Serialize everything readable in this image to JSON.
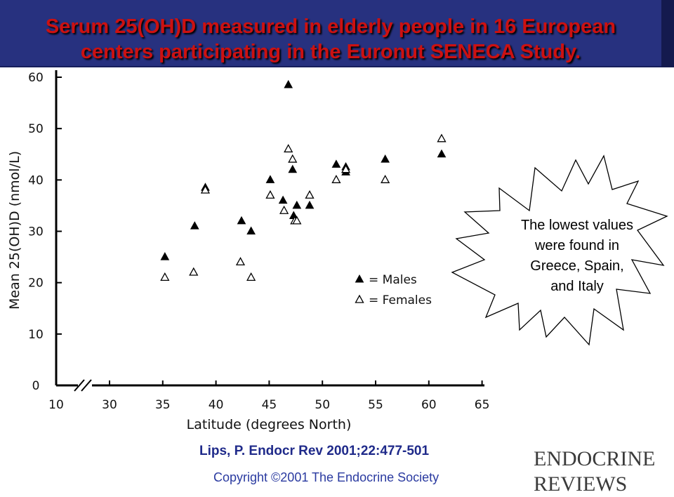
{
  "slide": {
    "title_line1": "Serum 25(OH)D measured in elderly people in 16 European",
    "title_line2": "centers participating in the Euronut SENECA Study.",
    "citation": "Lips, P. Endocr Rev 2001;22:477-501",
    "copyright": "Copyright ©2001 The Endocrine Society",
    "journal_line1": "ENDOCRINE",
    "journal_line2": "REVIEWS",
    "colors": {
      "banner": "#27317f",
      "title": "#cc1111",
      "citation": "#1f2a8a"
    }
  },
  "callout": {
    "lines": [
      "The lowest values",
      "were found in",
      "Greece, Spain,",
      "and Italy"
    ]
  },
  "chart_data": {
    "type": "scatter",
    "title": "",
    "xlabel": "Latitude (degrees North)",
    "ylabel": "Mean 25(OH)D (nmol/L)",
    "xlim": [
      10,
      65
    ],
    "ylim": [
      0,
      60
    ],
    "axis_break_between": [
      10,
      30
    ],
    "x_ticks": [
      10,
      30,
      35,
      40,
      45,
      50,
      55,
      60,
      65
    ],
    "y_ticks": [
      0,
      10,
      20,
      30,
      40,
      50,
      60
    ],
    "legend_position": "center-right",
    "series": [
      {
        "name": "Males",
        "marker": "filled-triangle",
        "points": [
          [
            35.2,
            25
          ],
          [
            38,
            31
          ],
          [
            39,
            38.5
          ],
          [
            42.4,
            32
          ],
          [
            43.3,
            30
          ],
          [
            45.1,
            40
          ],
          [
            46.3,
            36
          ],
          [
            46.8,
            58.5
          ],
          [
            47.2,
            42
          ],
          [
            47.3,
            33
          ],
          [
            47.6,
            35
          ],
          [
            48.8,
            35
          ],
          [
            51.3,
            43
          ],
          [
            52.2,
            42.5
          ],
          [
            52.2,
            41.5
          ],
          [
            55.9,
            44
          ],
          [
            61.2,
            45
          ]
        ]
      },
      {
        "name": "Females",
        "marker": "open-triangle",
        "points": [
          [
            35.2,
            21
          ],
          [
            37.9,
            22
          ],
          [
            39,
            38
          ],
          [
            42.3,
            24
          ],
          [
            43.3,
            21
          ],
          [
            45.1,
            37
          ],
          [
            46.4,
            34
          ],
          [
            46.8,
            46
          ],
          [
            47.2,
            44
          ],
          [
            47.4,
            32
          ],
          [
            47.6,
            32
          ],
          [
            48.8,
            37
          ],
          [
            51.3,
            40
          ],
          [
            52.2,
            42
          ],
          [
            55.9,
            40
          ],
          [
            61.2,
            48
          ]
        ]
      }
    ]
  }
}
